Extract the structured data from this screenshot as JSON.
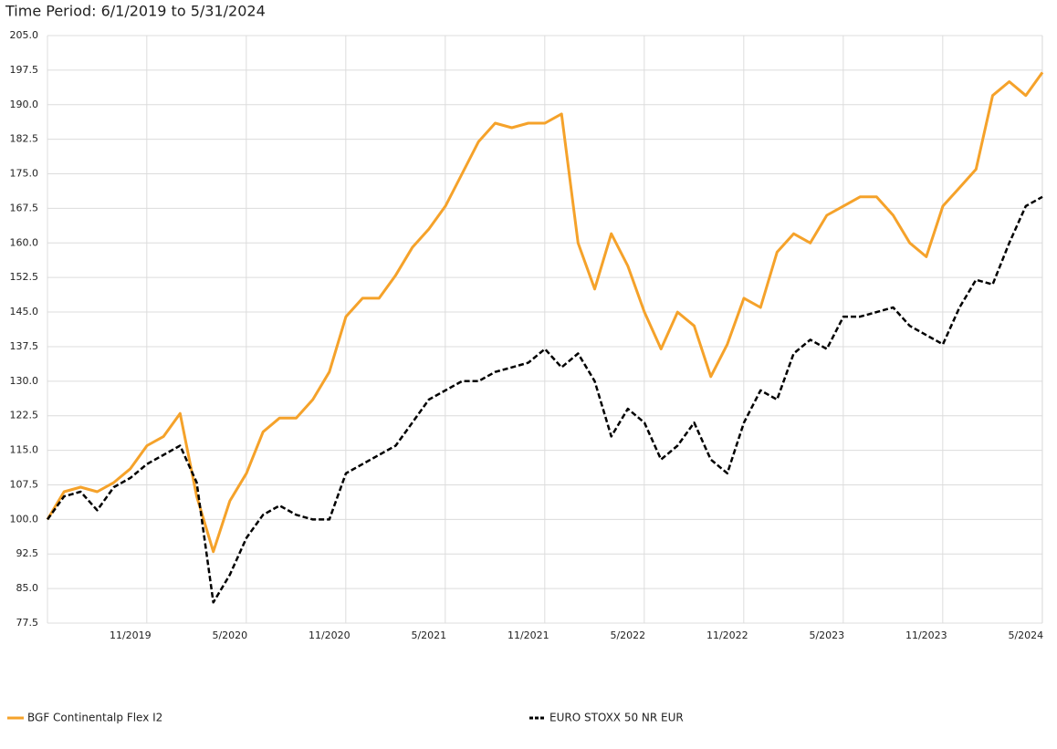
{
  "chart_data": {
    "type": "line",
    "title": "Time Period: 6/1/2019 to 5/31/2024",
    "categories": [
      null,
      null,
      null,
      null,
      null,
      "11/2019",
      null,
      null,
      null,
      null,
      null,
      "5/2020",
      null,
      null,
      null,
      null,
      null,
      "11/2020",
      null,
      null,
      null,
      null,
      null,
      "5/2021",
      null,
      null,
      null,
      null,
      null,
      "11/2021",
      null,
      null,
      null,
      null,
      null,
      "5/2022",
      null,
      null,
      null,
      null,
      null,
      "11/2022",
      null,
      null,
      null,
      null,
      null,
      "5/2023",
      null,
      null,
      null,
      null,
      null,
      "11/2023",
      null,
      null,
      null,
      null,
      null,
      "5/2024",
      null
    ],
    "series": [
      {
        "name": "BGF Continentalp Flex I2",
        "color": "#f5a22a",
        "dash": false,
        "values": [
          100,
          106,
          107,
          106,
          108,
          111,
          116,
          118,
          123,
          105,
          93,
          104,
          110,
          119,
          122,
          122,
          126,
          132,
          144,
          148,
          148,
          153,
          159,
          163,
          168,
          175,
          182,
          186,
          185,
          186,
          186,
          188,
          160,
          150,
          162,
          155,
          145,
          137,
          145,
          142,
          131,
          138,
          148,
          146,
          158,
          162,
          160,
          166,
          168,
          170,
          170,
          166,
          160,
          157,
          168,
          172,
          176,
          192,
          195,
          192,
          197
        ]
      },
      {
        "name": "EURO STOXX 50 NR EUR",
        "color": "#000000",
        "dash": true,
        "values": [
          100,
          105,
          106,
          102,
          107,
          109,
          112,
          114,
          116,
          108,
          82,
          88,
          96,
          101,
          103,
          101,
          100,
          100,
          110,
          112,
          114,
          116,
          121,
          126,
          128,
          130,
          130,
          132,
          133,
          134,
          137,
          133,
          136,
          130,
          118,
          124,
          121,
          113,
          116,
          121,
          113,
          110,
          121,
          128,
          126,
          136,
          139,
          137,
          144,
          144,
          145,
          146,
          142,
          140,
          138,
          146,
          152,
          151,
          160,
          168,
          170
        ]
      }
    ],
    "ylim": [
      77.5,
      205
    ],
    "yticks": [
      {
        "value": 77.5,
        "label": "77.5"
      },
      {
        "value": 85,
        "label": "85.0"
      },
      {
        "value": 92.5,
        "label": "92.5"
      },
      {
        "value": 100,
        "label": "100.0"
      },
      {
        "value": 107.5,
        "label": "107.5"
      },
      {
        "value": 115,
        "label": "115.0"
      },
      {
        "value": 122.5,
        "label": "122.5"
      },
      {
        "value": 130,
        "label": "130.0"
      },
      {
        "value": 137.5,
        "label": "137.5"
      },
      {
        "value": 145,
        "label": "145.0"
      },
      {
        "value": 152.5,
        "label": "152.5"
      },
      {
        "value": 160,
        "label": "160.0"
      },
      {
        "value": 167.5,
        "label": "167.5"
      },
      {
        "value": 175,
        "label": "175.0"
      },
      {
        "value": 182.5,
        "label": "182.5"
      },
      {
        "value": 190,
        "label": "190.0"
      },
      {
        "value": 197.5,
        "label": "197.5"
      },
      {
        "value": 205,
        "label": "205.0"
      }
    ],
    "grid": true
  }
}
